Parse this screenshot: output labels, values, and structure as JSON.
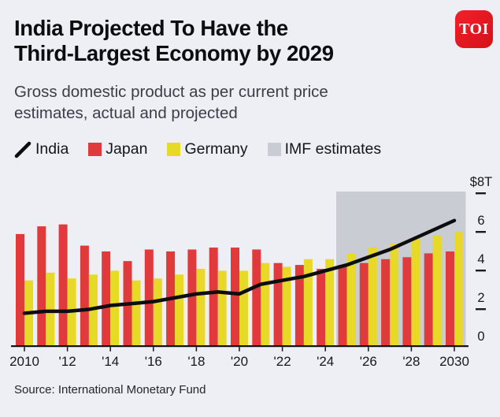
{
  "header": {
    "title_line1": "India Projected To Have the",
    "title_line2": "Third-Largest Economy by 2029",
    "logo_text": "TOI"
  },
  "subtitle": {
    "line1": "Gross domestic product as per current price",
    "line2": "estimates, actual and projected"
  },
  "legend": {
    "items": [
      {
        "label": "India",
        "swatch": "line",
        "color": "#0c0d0f"
      },
      {
        "label": "Japan",
        "swatch": "square",
        "color": "#e03a3c"
      },
      {
        "label": "Germany",
        "swatch": "square",
        "color": "#e8d827"
      },
      {
        "label": "IMF estimates",
        "swatch": "square",
        "color": "#c9ccd3"
      }
    ]
  },
  "chart_data": {
    "type": "combo-bar-line",
    "title": "India Projected To Have the Third-Largest Economy by 2029",
    "subtitle": "Gross domestic product as per current price estimates, actual and projected",
    "unit": "USD trillions",
    "x": [
      2010,
      2011,
      2012,
      2013,
      2014,
      2015,
      2016,
      2017,
      2018,
      2019,
      2020,
      2021,
      2022,
      2023,
      2024,
      2025,
      2026,
      2027,
      2028,
      2029,
      2030
    ],
    "series": [
      {
        "name": "India",
        "type": "line",
        "color": "#0c0d0f",
        "values": [
          1.7,
          1.8,
          1.8,
          1.9,
          2.1,
          2.2,
          2.3,
          2.5,
          2.7,
          2.8,
          2.7,
          3.2,
          3.4,
          3.6,
          3.9,
          4.2,
          4.6,
          5.0,
          5.5,
          6.0,
          6.5
        ]
      },
      {
        "name": "Japan",
        "type": "bar",
        "color": "#e03a3c",
        "values": [
          5.8,
          6.2,
          6.3,
          5.2,
          4.9,
          4.4,
          5.0,
          4.9,
          5.0,
          5.1,
          5.1,
          5.0,
          4.3,
          4.2,
          4.0,
          4.2,
          4.3,
          4.5,
          4.6,
          4.8,
          4.9
        ]
      },
      {
        "name": "Germany",
        "type": "bar",
        "color": "#e8d827",
        "values": [
          3.4,
          3.8,
          3.5,
          3.7,
          3.9,
          3.4,
          3.5,
          3.7,
          4.0,
          3.9,
          3.9,
          4.3,
          4.1,
          4.5,
          4.5,
          4.8,
          5.1,
          5.3,
          5.6,
          5.7,
          5.9
        ]
      }
    ],
    "estimate_region": {
      "label": "IMF estimates",
      "from": 2025,
      "to": 2030,
      "color": "#c9ccd3"
    },
    "y_axis": {
      "range": [
        0,
        8
      ],
      "ticks": [
        8,
        6,
        4,
        2,
        0
      ],
      "tick_labels": [
        "$8T",
        "6",
        "4",
        "2",
        "0"
      ],
      "side": "right"
    },
    "x_axis": {
      "tick_years": [
        2010,
        2012,
        2014,
        2016,
        2018,
        2020,
        2022,
        2024,
        2026,
        2028,
        2030
      ],
      "tick_labels": [
        "2010",
        "'12",
        "'14",
        "'16",
        "'18",
        "'20",
        "'22",
        "'24",
        "'26",
        "'28",
        "2030"
      ]
    },
    "grid": false,
    "legend_position": "top"
  },
  "footer": {
    "source": "Source: International Monetary Fund"
  },
  "colors": {
    "background": "#edeff4",
    "axis": "#121317",
    "bar_japan": "#e03a3c",
    "bar_germany": "#e8d827",
    "imf_region": "#c9ccd3",
    "india_line": "#0c0d0f",
    "logo_red": "#e0161d"
  }
}
